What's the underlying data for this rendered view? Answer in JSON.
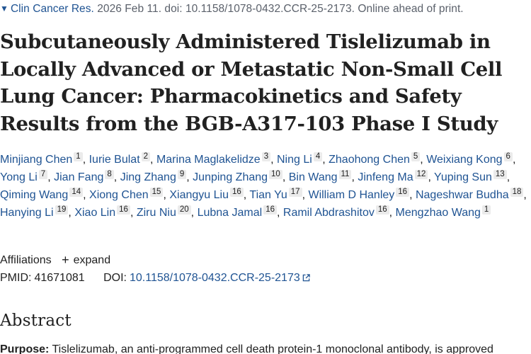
{
  "citation": {
    "journal": "Clin Cancer Res.",
    "details": "2026 Feb 11. doi: 10.1158/1078-0432.CCR-25-2173. Online ahead of print."
  },
  "article": {
    "title": "Subcutaneously Administered Tislelizumab in Locally Advanced or Metastatic Non-Small Cell Lung Cancer: Pharmacokinetics and Safety Results from the BGB-A317-103 Phase I Study"
  },
  "authors": [
    {
      "name": "Minjiang Chen",
      "aff": "1"
    },
    {
      "name": "Iurie Bulat",
      "aff": "2"
    },
    {
      "name": "Marina Maglakelidze",
      "aff": "3"
    },
    {
      "name": "Ning Li",
      "aff": "4"
    },
    {
      "name": "Zhaohong Chen",
      "aff": "5"
    },
    {
      "name": "Weixiang Kong",
      "aff": "6"
    },
    {
      "name": "Yong Li",
      "aff": "7"
    },
    {
      "name": "Jian Fang",
      "aff": "8"
    },
    {
      "name": "Jing Zhang",
      "aff": "9"
    },
    {
      "name": "Junping Zhang",
      "aff": "10"
    },
    {
      "name": "Bin Wang",
      "aff": "11"
    },
    {
      "name": "Jinfeng Ma",
      "aff": "12"
    },
    {
      "name": "Yuping Sun",
      "aff": "13"
    },
    {
      "name": "Qiming Wang",
      "aff": "14"
    },
    {
      "name": "Xiong Chen",
      "aff": "15"
    },
    {
      "name": "Xiangyu Liu",
      "aff": "16"
    },
    {
      "name": "Tian Yu",
      "aff": "17"
    },
    {
      "name": "William D Hanley",
      "aff": "16"
    },
    {
      "name": "Nageshwar Budha",
      "aff": "18"
    },
    {
      "name": "Hanying Li",
      "aff": "19"
    },
    {
      "name": "Xiao Lin",
      "aff": "16"
    },
    {
      "name": "Ziru Niu",
      "aff": "20"
    },
    {
      "name": "Lubna Jamal",
      "aff": "16"
    },
    {
      "name": "Ramil Abdrashitov",
      "aff": "16"
    },
    {
      "name": "Mengzhao Wang",
      "aff": "1"
    }
  ],
  "affiliations": {
    "label": "Affiliations",
    "toggle_label": "expand"
  },
  "identifiers": {
    "pmid_label": "PMID:",
    "pmid": "41671081",
    "doi_label": "DOI:",
    "doi": "10.1158/1078-0432.CCR-25-2173"
  },
  "abstract": {
    "heading": "Abstract",
    "purpose_label": "Purpose:",
    "purpose_text": "Tislelizumab, an anti-programmed cell death protein-1 monoclonal antibody, is approved"
  },
  "colors": {
    "link": "#205493",
    "text": "#212121",
    "muted": "#5b616b",
    "badge_bg": "#ebebeb"
  }
}
